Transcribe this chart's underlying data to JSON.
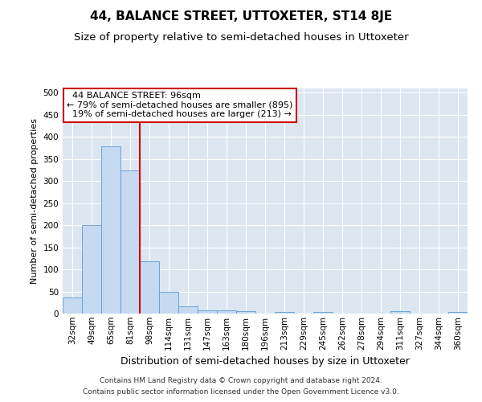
{
  "title": "44, BALANCE STREET, UTTOXETER, ST14 8JE",
  "subtitle": "Size of property relative to semi-detached houses in Uttoxeter",
  "xlabel": "Distribution of semi-detached houses by size in Uttoxeter",
  "ylabel": "Number of semi-detached properties",
  "footer_line1": "Contains HM Land Registry data © Crown copyright and database right 2024.",
  "footer_line2": "Contains public sector information licensed under the Open Government Licence v3.0.",
  "bins": [
    "32sqm",
    "49sqm",
    "65sqm",
    "81sqm",
    "98sqm",
    "114sqm",
    "131sqm",
    "147sqm",
    "163sqm",
    "180sqm",
    "196sqm",
    "213sqm",
    "229sqm",
    "245sqm",
    "262sqm",
    "278sqm",
    "294sqm",
    "311sqm",
    "327sqm",
    "344sqm",
    "360sqm"
  ],
  "values": [
    37,
    200,
    378,
    325,
    118,
    50,
    16,
    7,
    7,
    5,
    0,
    4,
    0,
    4,
    0,
    0,
    0,
    5,
    0,
    0,
    3
  ],
  "bar_color": "#c5d9f0",
  "bar_edge_color": "#5b9bd5",
  "property_bin_index": 4,
  "property_label": "44 BALANCE STREET: 96sqm",
  "pct_smaller": 79,
  "pct_smaller_count": 895,
  "pct_larger": 19,
  "pct_larger_count": 213,
  "annotation_box_color": "#ffffff",
  "annotation_box_edge": "#cc0000",
  "vline_color": "#cc0000",
  "ylim": [
    0,
    510
  ],
  "yticks": [
    0,
    50,
    100,
    150,
    200,
    250,
    300,
    350,
    400,
    450,
    500
  ],
  "bg_color": "#dce6f1",
  "grid_color": "#ffffff",
  "title_fontsize": 11,
  "subtitle_fontsize": 9.5,
  "ylabel_fontsize": 8,
  "xlabel_fontsize": 9,
  "tick_fontsize": 7.5,
  "footer_fontsize": 6.5,
  "ann_fontsize": 8
}
